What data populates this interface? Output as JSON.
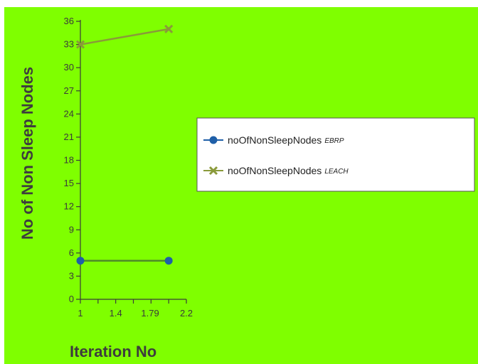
{
  "chart_data": {
    "type": "line",
    "xlabel": "Iteration No",
    "ylabel": "No of Non Sleep Nodes",
    "xlim": [
      1,
      2.2
    ],
    "ylim": [
      0,
      36
    ],
    "x_ticks": [
      "1",
      "1.4",
      "1.79",
      "2.2"
    ],
    "y_ticks": [
      "0",
      "3",
      "6",
      "9",
      "12",
      "15",
      "18",
      "21",
      "24",
      "27",
      "30",
      "33",
      "36"
    ],
    "legend_position": "right",
    "series": [
      {
        "name": "noOfNonSleepNodes",
        "tag": "EBRP",
        "color": "#1f5fa8",
        "line_color": "#4f8a2a",
        "marker": "circle",
        "x": [
          1,
          2
        ],
        "y": [
          5,
          5
        ]
      },
      {
        "name": "noOfNonSleepNodes",
        "tag": "LEACH",
        "color": "#8a9a3a",
        "line_color": "#8a9a3a",
        "marker": "x",
        "x": [
          1,
          2
        ],
        "y": [
          33,
          35
        ]
      }
    ]
  },
  "colors": {
    "background": "#7fff00",
    "axis": "#3a3a3a"
  }
}
